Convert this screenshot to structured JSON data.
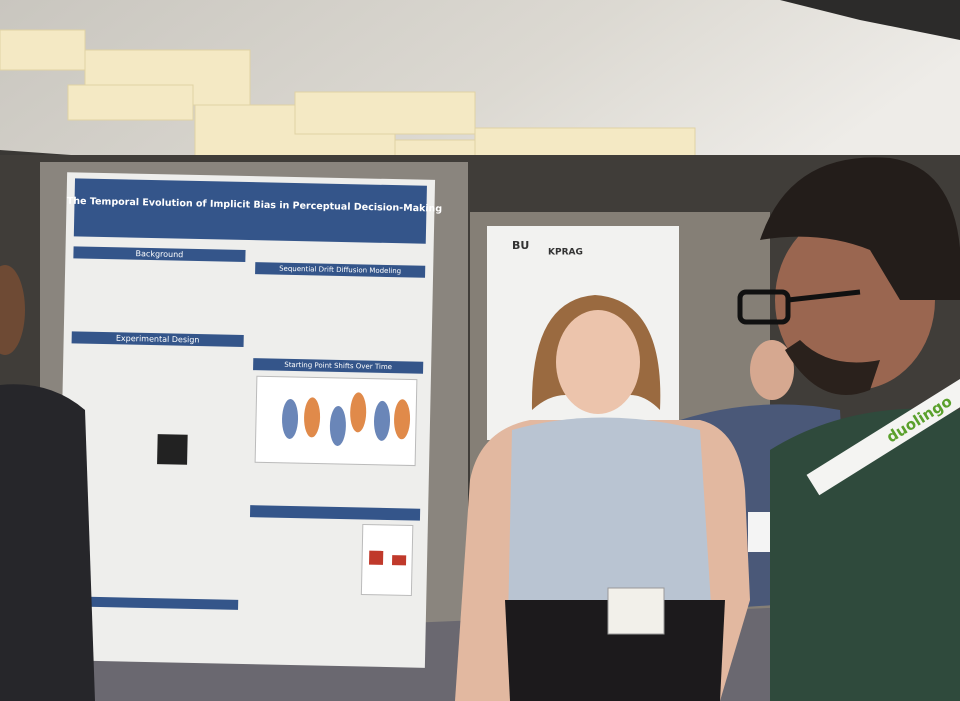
{
  "poster_left": {
    "title": "The Temporal Evolution of Implicit Bias in Perceptual Decision-Making",
    "sections": [
      "Background",
      "Experimental Design",
      "Sequential Drift Diffusion Modeling",
      "Starting Point Shifts Over Time"
    ]
  },
  "poster_right": {
    "logos": [
      "BU",
      "KPRAG"
    ]
  },
  "lanyard": {
    "text": "duolingo"
  }
}
